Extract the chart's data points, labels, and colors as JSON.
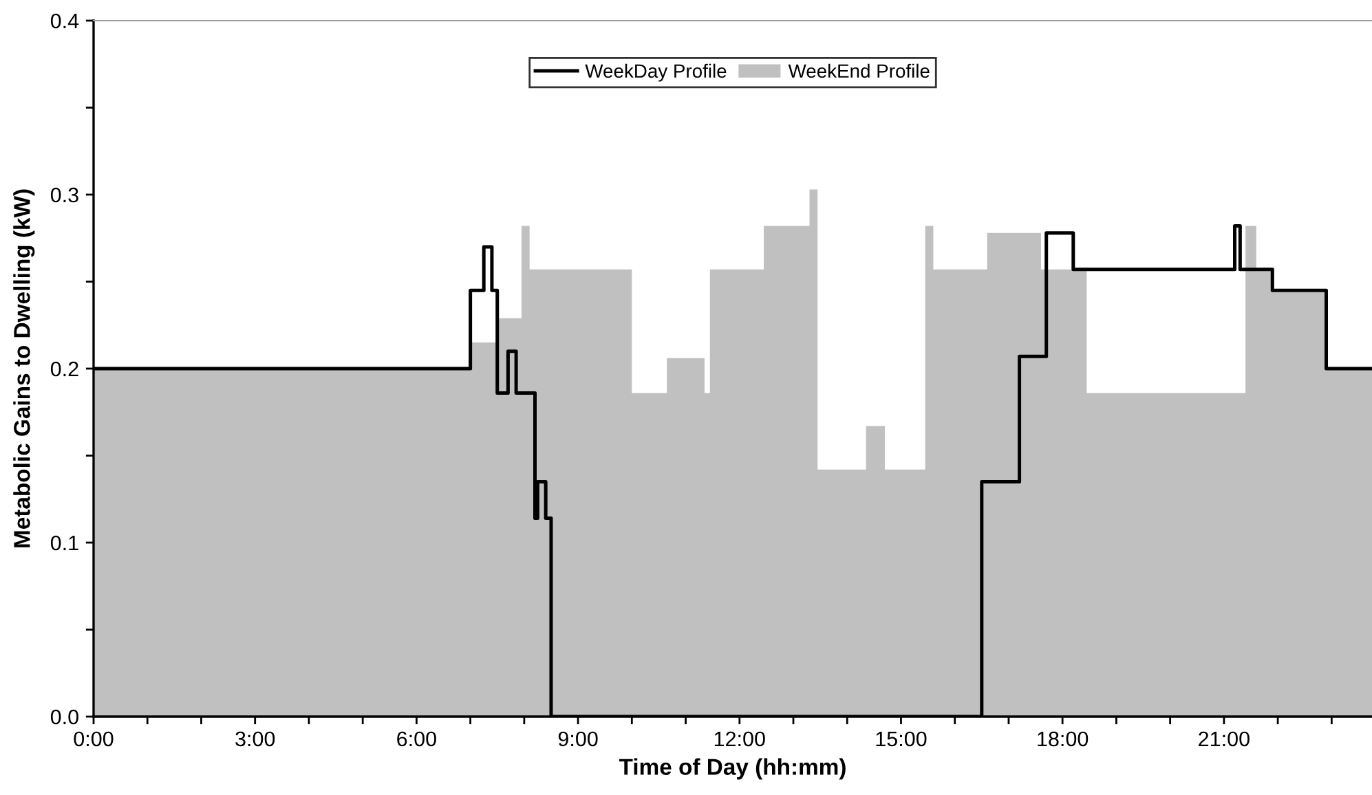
{
  "chart_data": {
    "type": "step",
    "xlabel": "Time of Day (hh:mm)",
    "ylabel": "Metabolic Gains to Dwelling (kW)",
    "series": [
      {
        "name": "WeekDay Profile",
        "color": "#000000",
        "x": [
          0,
          7.0,
          7.25,
          7.4,
          7.5,
          7.7,
          7.85,
          8.2,
          8.25,
          8.4,
          8.5,
          16.5,
          17.2,
          17.7,
          18.2,
          21.2,
          21.3,
          21.9,
          22.9,
          23.75
        ],
        "values": [
          0.2,
          0.245,
          0.27,
          0.245,
          0.186,
          0.21,
          0.186,
          0.114,
          0.135,
          0.114,
          0,
          0.135,
          0.207,
          0.278,
          0.257,
          0.282,
          0.257,
          0.245,
          0.2,
          0.2
        ]
      },
      {
        "name": "WeekEnd Profile",
        "type": "area",
        "color": "#c0c0c0",
        "x": [
          0,
          7.0,
          7.5,
          7.95,
          8.1,
          10.0,
          10.65,
          11.35,
          11.45,
          12.45,
          13.3,
          13.45,
          14.35,
          14.7,
          15.45,
          15.6,
          16.6,
          17.6,
          18.45,
          21.4,
          21.6,
          21.9,
          22.9,
          23.75
        ],
        "values": [
          0.2,
          0.215,
          0.229,
          0.282,
          0.257,
          0.186,
          0.206,
          0.186,
          0.257,
          0.282,
          0.303,
          0.142,
          0.167,
          0.142,
          0.282,
          0.257,
          0.278,
          0.257,
          0.186,
          0.282,
          0.257,
          0.245,
          0.2,
          0.2
        ]
      }
    ],
    "xlim": [
      0,
      23.75
    ],
    "xticks": [
      {
        "value": 0,
        "label": "0:00"
      },
      {
        "value": 1,
        "label": null
      },
      {
        "value": 2,
        "label": null
      },
      {
        "value": 3,
        "label": "3:00"
      },
      {
        "value": 4,
        "label": null
      },
      {
        "value": 5,
        "label": null
      },
      {
        "value": 6,
        "label": "6:00"
      },
      {
        "value": 7,
        "label": null
      },
      {
        "value": 8,
        "label": null
      },
      {
        "value": 9,
        "label": "9:00"
      },
      {
        "value": 10,
        "label": null
      },
      {
        "value": 11,
        "label": null
      },
      {
        "value": 12,
        "label": "12:00"
      },
      {
        "value": 13,
        "label": null
      },
      {
        "value": 14,
        "label": null
      },
      {
        "value": 15,
        "label": "15:00"
      },
      {
        "value": 16,
        "label": null
      },
      {
        "value": 17,
        "label": null
      },
      {
        "value": 18,
        "label": "18:00"
      },
      {
        "value": 19,
        "label": null
      },
      {
        "value": 20,
        "label": null
      },
      {
        "value": 21,
        "label": "21:00"
      },
      {
        "value": 22,
        "label": null
      },
      {
        "value": 23,
        "label": null
      }
    ],
    "ylim": [
      0,
      0.4
    ],
    "yticks": [
      {
        "value": 0,
        "label": "0.0"
      },
      {
        "value": 0.05,
        "label": null
      },
      {
        "value": 0.1,
        "label": "0.1"
      },
      {
        "value": 0.15,
        "label": null
      },
      {
        "value": 0.2,
        "label": "0.2"
      },
      {
        "value": 0.25,
        "label": null
      },
      {
        "value": 0.3,
        "label": "0.3"
      },
      {
        "value": 0.35,
        "label": null
      },
      {
        "value": 0.4,
        "label": "0.4"
      }
    ],
    "legend": "top",
    "grid": false
  }
}
